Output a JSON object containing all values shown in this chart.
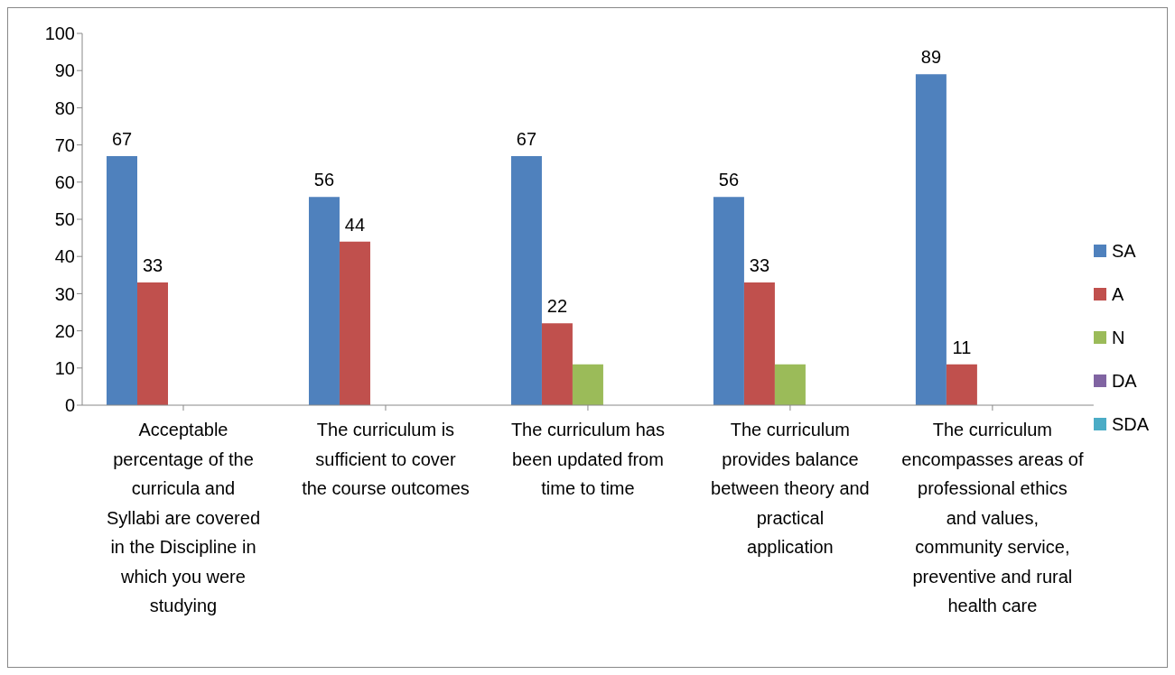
{
  "chart_data": {
    "type": "bar",
    "categories": [
      "Acceptable percentage of the curricula and Syllabi are covered in the Discipline in which you were studying",
      "The curriculum is sufficient to cover the course outcomes",
      "The curriculum has been updated from time to time",
      "The curriculum provides balance between theory and practical application",
      "The curriculum encompasses areas of professional ethics and values, community service, preventive and rural health care"
    ],
    "series": [
      {
        "name": "SA",
        "color": "#4f81bd",
        "values": [
          67,
          56,
          67,
          56,
          89
        ],
        "value_labels": [
          "67",
          "56",
          "67",
          "56",
          "89"
        ]
      },
      {
        "name": "A",
        "color": "#c0504d",
        "values": [
          33,
          44,
          22,
          33,
          11
        ],
        "value_labels": [
          "33",
          "44",
          "22",
          "33",
          "11"
        ]
      },
      {
        "name": "N",
        "color": "#9bbb59",
        "values": [
          0,
          0,
          11,
          11,
          0
        ]
      },
      {
        "name": "DA",
        "color": "#8064a2",
        "values": [
          0,
          0,
          0,
          0,
          0
        ]
      },
      {
        "name": "SDA",
        "color": "#4bacc6",
        "values": [
          0,
          0,
          0,
          0,
          0
        ]
      }
    ],
    "ylim": [
      0,
      100
    ],
    "yticks": [
      0,
      10,
      20,
      30,
      40,
      50,
      60,
      70,
      80,
      90,
      100
    ],
    "grid": false,
    "legend": "right"
  }
}
